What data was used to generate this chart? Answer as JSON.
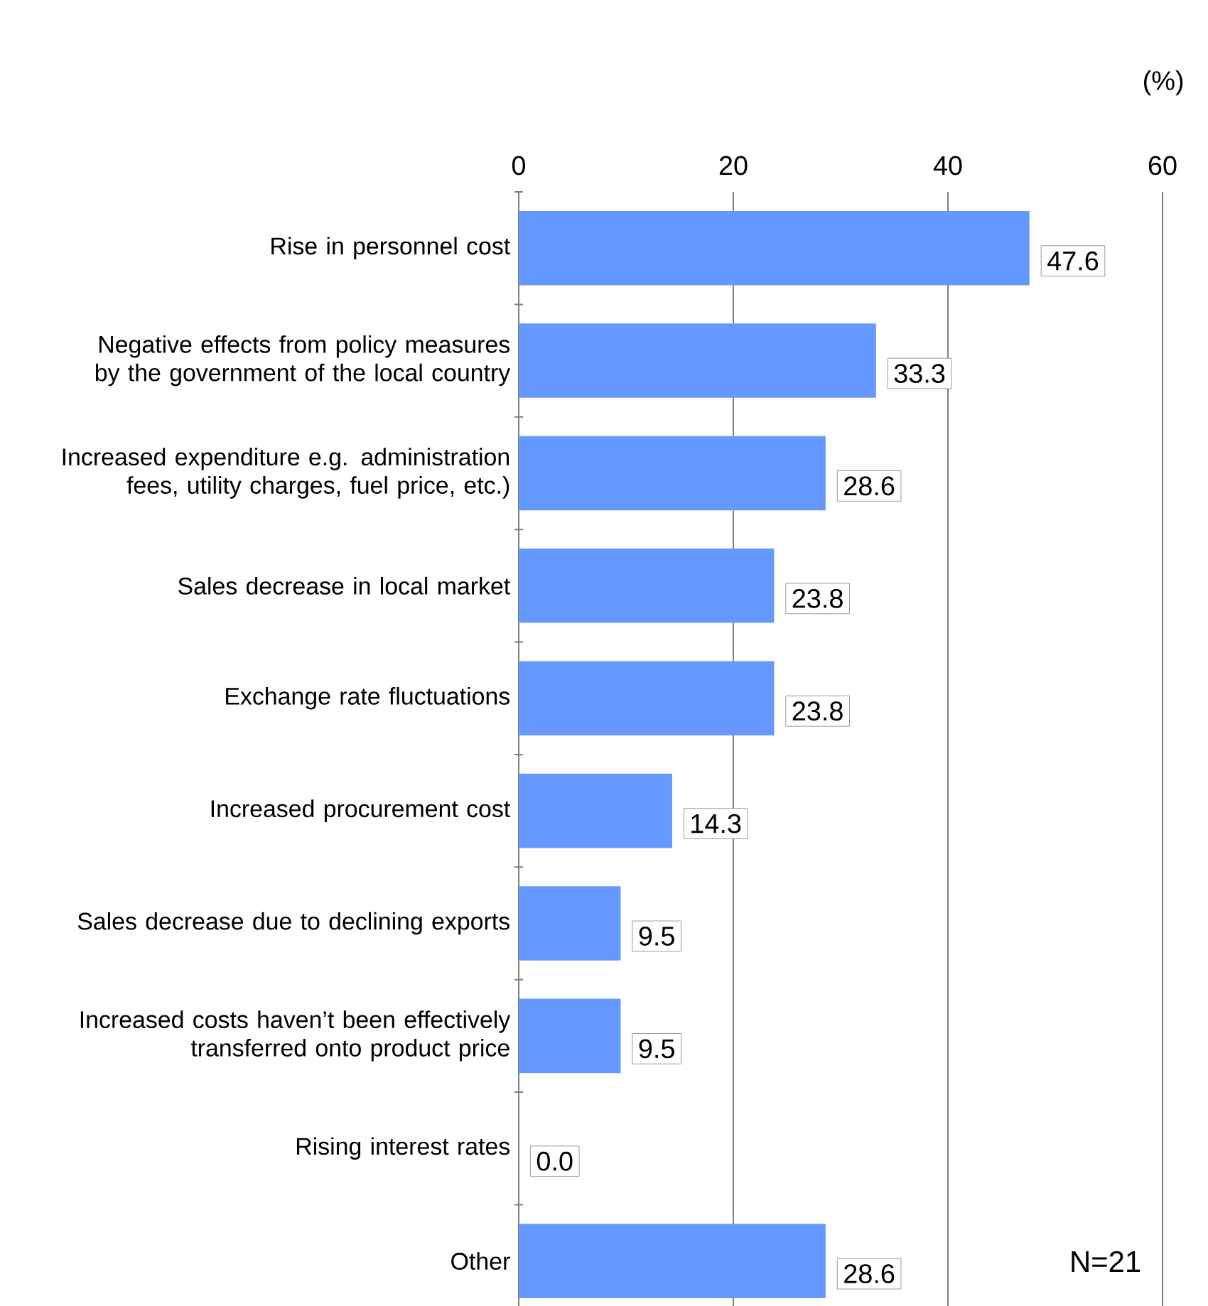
{
  "chart_data": {
    "type": "bar",
    "orientation": "horizontal",
    "xlabel": "(%)",
    "categories": [
      "Rise in personnel cost",
      "Negative effects from policy measures by the government of the local country",
      "Increased expenditure e.g. administration fees, utility charges, fuel price, etc.)",
      "Sales decrease in local market",
      "Exchange rate fluctuations",
      "Increased procurement cost",
      "Sales decrease due to declining exports",
      "Increased costs haven’t been effectively transferred onto product price",
      "Rising interest rates",
      "Other"
    ],
    "values": [
      47.6,
      33.3,
      28.6,
      23.8,
      23.8,
      14.3,
      9.5,
      9.5,
      0.0,
      28.6
    ],
    "value_labels": [
      "47.6",
      "33.3",
      "28.6",
      "23.8",
      "23.8",
      "14.3",
      "9.5",
      "9.5",
      "0.0",
      "28.6"
    ],
    "color": "#6699ff",
    "xlim": [
      0,
      60
    ],
    "xticks": [
      0,
      20,
      40,
      60
    ],
    "grid": "x",
    "annotations": [
      "N=21"
    ]
  }
}
